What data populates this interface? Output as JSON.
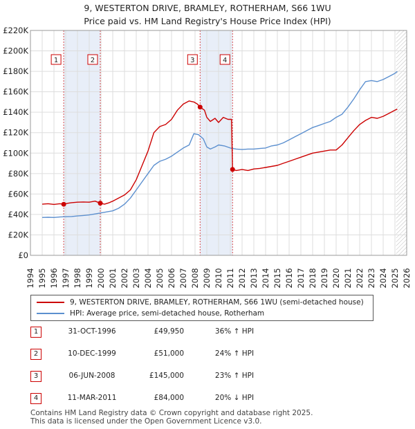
{
  "title_line1": "9, WESTERTON DRIVE, BRAMLEY, ROTHERHAM, S66 1WU",
  "title_line2": "Price paid vs. HM Land Registry's House Price Index (HPI)",
  "colors": {
    "property": "#cc0000",
    "hpi": "#5b8fcf",
    "shade": "#e8eef8",
    "grid": "#dddddd",
    "marker_border": "#cc0000"
  },
  "chart_data": {
    "type": "line",
    "xlim": [
      1994,
      2026
    ],
    "ylim": [
      0,
      220000
    ],
    "x_ticks": [
      1994,
      1995,
      1996,
      1997,
      1998,
      1999,
      2000,
      2001,
      2002,
      2003,
      2004,
      2005,
      2006,
      2007,
      2008,
      2009,
      2010,
      2011,
      2012,
      2013,
      2014,
      2015,
      2016,
      2017,
      2018,
      2019,
      2020,
      2021,
      2022,
      2023,
      2024,
      2025,
      2026
    ],
    "y_ticks": [
      0,
      20000,
      40000,
      60000,
      80000,
      100000,
      120000,
      140000,
      160000,
      180000,
      200000,
      220000
    ],
    "y_tick_labels": [
      "£0",
      "£20K",
      "£40K",
      "£60K",
      "£80K",
      "£100K",
      "£120K",
      "£140K",
      "£160K",
      "£180K",
      "£200K",
      "£220K"
    ],
    "shaded_ranges": [
      [
        1996.83,
        1999.94
      ],
      [
        2008.43,
        2011.19
      ]
    ],
    "hatched_from": 2025.1,
    "series": [
      {
        "name": "9, WESTERTON DRIVE, BRAMLEY, ROTHERHAM, S66 1WU (semi-detached house)",
        "color": "#cc0000",
        "x": [
          1995.0,
          1995.5,
          1996.0,
          1996.5,
          1996.83,
          1997.2,
          1997.5,
          1998.0,
          1998.5,
          1999.0,
          1999.5,
          1999.94,
          2000.3,
          2000.7,
          2001.0,
          2001.5,
          2002.0,
          2002.5,
          2003.0,
          2003.5,
          2004.0,
          2004.5,
          2005.0,
          2005.5,
          2006.0,
          2006.5,
          2007.0,
          2007.5,
          2007.9,
          2008.2,
          2008.43,
          2008.8,
          2009.0,
          2009.3,
          2009.7,
          2010.0,
          2010.4,
          2010.8,
          2011.1,
          2011.19,
          2011.5,
          2012.0,
          2012.5,
          2013.0,
          2013.5,
          2014.0,
          2014.5,
          2015.0,
          2015.5,
          2016.0,
          2016.5,
          2017.0,
          2017.5,
          2018.0,
          2018.5,
          2019.0,
          2019.5,
          2020.0,
          2020.5,
          2021.0,
          2021.5,
          2022.0,
          2022.5,
          2023.0,
          2023.5,
          2024.0,
          2024.5,
          2025.0,
          2025.2
        ],
        "values": [
          50000,
          50500,
          49800,
          50500,
          49950,
          51000,
          51500,
          52000,
          52200,
          52000,
          53000,
          51000,
          50000,
          51500,
          53000,
          56000,
          59000,
          64000,
          74000,
          88000,
          102000,
          120000,
          126000,
          128000,
          133000,
          142000,
          148000,
          151000,
          150000,
          148000,
          145000,
          142000,
          135000,
          131000,
          134000,
          130000,
          135000,
          133000,
          133000,
          84000,
          83000,
          84000,
          83000,
          84500,
          85000,
          86000,
          87000,
          88000,
          90000,
          92000,
          94000,
          96000,
          98000,
          100000,
          101000,
          102000,
          103000,
          103000,
          108000,
          115000,
          122000,
          128000,
          132000,
          135000,
          134000,
          136000,
          139000,
          142000,
          143000
        ]
      },
      {
        "name": "HPI: Average price, semi-detached house, Rotherham",
        "color": "#5b8fcf",
        "x": [
          1995.0,
          1995.5,
          1996.0,
          1996.5,
          1997.0,
          1997.5,
          1998.0,
          1998.5,
          1999.0,
          1999.5,
          2000.0,
          2000.5,
          2001.0,
          2001.5,
          2002.0,
          2002.5,
          2003.0,
          2003.5,
          2004.0,
          2004.5,
          2005.0,
          2005.5,
          2006.0,
          2006.5,
          2007.0,
          2007.5,
          2007.9,
          2008.3,
          2008.7,
          2009.0,
          2009.3,
          2009.7,
          2010.0,
          2010.5,
          2011.0,
          2011.5,
          2012.0,
          2012.5,
          2013.0,
          2013.5,
          2014.0,
          2014.5,
          2015.0,
          2015.5,
          2016.0,
          2016.5,
          2017.0,
          2017.5,
          2018.0,
          2018.5,
          2019.0,
          2019.5,
          2020.0,
          2020.5,
          2021.0,
          2021.5,
          2022.0,
          2022.5,
          2023.0,
          2023.5,
          2024.0,
          2024.5,
          2025.0,
          2025.2
        ],
        "values": [
          37000,
          37200,
          37000,
          37500,
          37800,
          38000,
          38500,
          39000,
          39500,
          40500,
          41500,
          42500,
          43500,
          46000,
          50000,
          56000,
          64000,
          72000,
          80000,
          88000,
          92000,
          94000,
          97000,
          101000,
          105000,
          108000,
          119000,
          118000,
          114000,
          106000,
          104000,
          106000,
          108000,
          107000,
          105000,
          104000,
          103500,
          104000,
          104000,
          104500,
          105000,
          107000,
          108000,
          110000,
          113000,
          116000,
          119000,
          122000,
          125000,
          127000,
          129000,
          131000,
          135000,
          138000,
          145000,
          153000,
          162000,
          170000,
          171000,
          170000,
          172000,
          175000,
          178000,
          180000
        ]
      }
    ],
    "sales": [
      {
        "id": "1",
        "x": 1996.83,
        "value": 49950
      },
      {
        "id": "2",
        "x": 1999.94,
        "value": 51000
      },
      {
        "id": "3",
        "x": 2008.43,
        "value": 145000
      },
      {
        "id": "4",
        "x": 2011.19,
        "value": 84000
      }
    ]
  },
  "legend": {
    "property_label": "9, WESTERTON DRIVE, BRAMLEY, ROTHERHAM, S66 1WU (semi-detached house)",
    "hpi_label": "HPI: Average price, semi-detached house, Rotherham"
  },
  "sales_table": [
    {
      "id": "1",
      "date": "31-OCT-1996",
      "price": "£49,950",
      "hpi": "36% ↑ HPI"
    },
    {
      "id": "2",
      "date": "10-DEC-1999",
      "price": "£51,000",
      "hpi": "24% ↑ HPI"
    },
    {
      "id": "3",
      "date": "06-JUN-2008",
      "price": "£145,000",
      "hpi": "23% ↑ HPI"
    },
    {
      "id": "4",
      "date": "11-MAR-2011",
      "price": "£84,000",
      "hpi": "20% ↓ HPI"
    }
  ],
  "footer_line1": "Contains HM Land Registry data © Crown copyright and database right 2025.",
  "footer_line2": "This data is licensed under the Open Government Licence v3.0."
}
